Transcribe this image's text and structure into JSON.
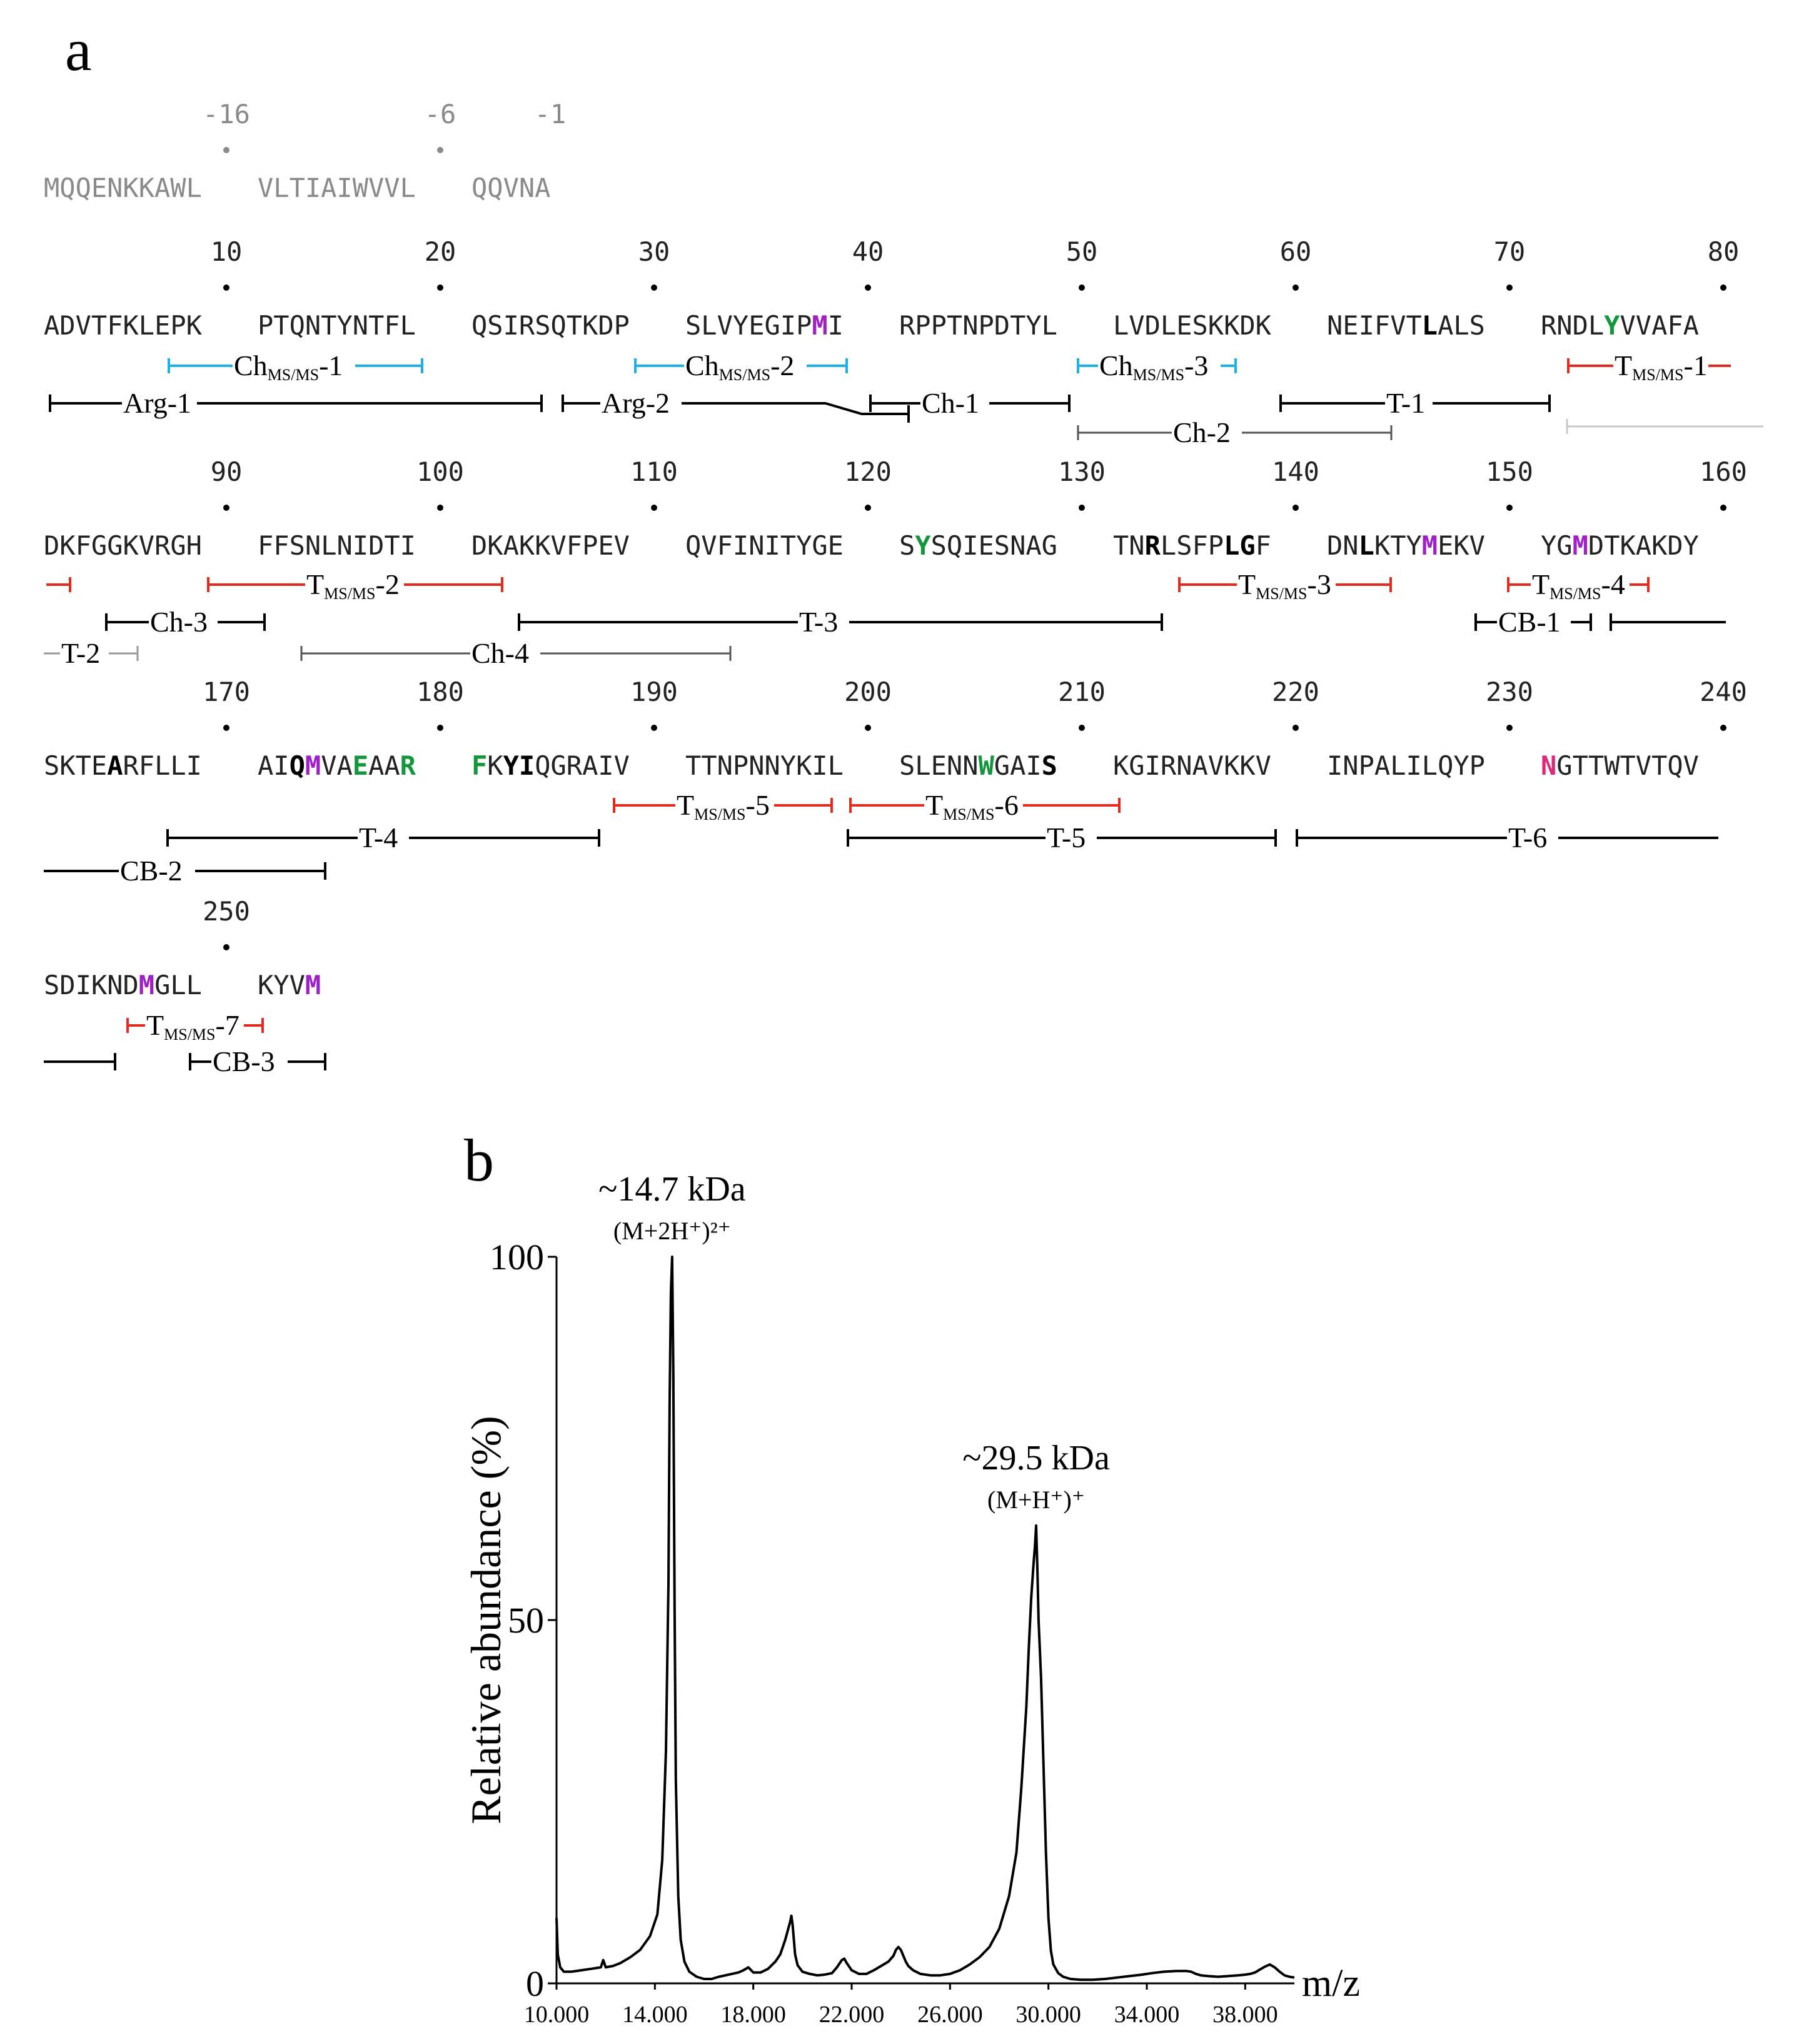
{
  "panel_a_label": "a",
  "panel_b_label": "b",
  "signal_peptide": {
    "numbers": [
      "-16",
      "-6",
      "-1"
    ],
    "blocks": [
      "MQQENKKAWL",
      "VLTIAIWVVL",
      "QQVNA"
    ]
  },
  "sequence_rows": [
    {
      "numbers": [
        "10",
        "20",
        "30",
        "40",
        "50",
        "60",
        "70",
        "80"
      ],
      "blocks": [
        "ADVTFKLEPK",
        "PTQNTYNTFL",
        "QSIRSQTKDP",
        "SLVYEGIPMI",
        "RPPTNPDTYL",
        "LVDLESKKDK",
        "NEIFVTLALS",
        "RNDLYVVAFA"
      ]
    },
    {
      "numbers": [
        "90",
        "100",
        "110",
        "120",
        "130",
        "140",
        "150",
        "160"
      ],
      "blocks": [
        "DKFGGKVRGH",
        "FFSNLNIDTI",
        "DKAKKVFPEV",
        "QVFINITYGE",
        "SYSQIESNAG",
        "TNRLSFPLGF",
        "DNLKTYMEKV",
        "YGMDTKAKDY"
      ]
    },
    {
      "numbers": [
        "170",
        "180",
        "190",
        "200",
        "210",
        "220",
        "230",
        "240"
      ],
      "blocks": [
        "SKTEARFLLI",
        "AIQMVAEAAR",
        "FKYIQGRAIV",
        "TTNPNNYKIL",
        "SLENNWGAIS",
        "KGIRNAVKKV",
        "INPALILQYP",
        "NGTTWTVTQV"
      ]
    },
    {
      "numbers": [
        "250"
      ],
      "blocks": [
        "SDIKNDMGLL",
        "KYVM"
      ]
    }
  ],
  "peptide_labels": {
    "ch_msms": [
      "Ch",
      "MS/MS",
      "-1",
      "-2",
      "-3"
    ],
    "t_msms": [
      "T",
      "MS/MS",
      "-1",
      "-2",
      "-3",
      "-4",
      "-5",
      "-6",
      "-7"
    ],
    "arg": [
      "Arg-1",
      "Arg-2"
    ],
    "ch": [
      "Ch-1",
      "Ch-2",
      "Ch-3",
      "Ch-4"
    ],
    "t": [
      "T-1",
      "T-2",
      "T-3",
      "T-4",
      "T-5",
      "T-6"
    ],
    "cb": [
      "CB-1",
      "CB-2",
      "CB-3"
    ]
  },
  "colors": {
    "cyan": "#1fb0e6",
    "red": "#e52b20",
    "black": "#000000",
    "gray": "#8a8a8a",
    "magenta": "#a020c8",
    "green": "#14963c",
    "pink": "#e0287a"
  },
  "chart_data": {
    "type": "line",
    "title": "",
    "xlabel": "m/z",
    "ylabel": "Relative abundance (%)",
    "xlim": [
      10000,
      40000
    ],
    "ylim": [
      0,
      100
    ],
    "x_ticks": [
      "10.000",
      "14.000",
      "18.000",
      "22.000",
      "26.000",
      "30.000",
      "34.000",
      "38.000"
    ],
    "x_tick_values": [
      10000,
      14000,
      18000,
      22000,
      26000,
      30000,
      34000,
      38000
    ],
    "y_ticks": [
      "0",
      "50",
      "100"
    ],
    "y_tick_values": [
      0,
      50,
      100
    ],
    "peaks": [
      {
        "label": "~14.7 kDa",
        "ion": "(M+2H⁺)²⁺",
        "x": 14700,
        "y": 100
      },
      {
        "label": "~29.5 kDa",
        "ion": "(M+H⁺)⁺",
        "x": 29500,
        "y": 63
      }
    ],
    "series": [
      {
        "name": "spectrum",
        "x": [
          10000,
          10050,
          10150,
          10300,
          10600,
          11000,
          11400,
          11800,
          11900,
          12000,
          12300,
          12600,
          13000,
          13400,
          13800,
          14100,
          14300,
          14450,
          14550,
          14600,
          14650,
          14700,
          14750,
          14800,
          14850,
          14950,
          15050,
          15200,
          15400,
          15700,
          16000,
          16300,
          16600,
          17000,
          17400,
          17600,
          17800,
          18000,
          18300,
          18600,
          18900,
          19100,
          19300,
          19500,
          19550,
          19600,
          19650,
          19700,
          19800,
          20000,
          20300,
          20600,
          20900,
          21200,
          21400,
          21600,
          21700,
          21800,
          22000,
          22300,
          22600,
          22900,
          23200,
          23500,
          23700,
          23800,
          23900,
          24000,
          24100,
          24200,
          24300,
          24500,
          24800,
          25200,
          25600,
          26000,
          26400,
          26800,
          27200,
          27600,
          28000,
          28400,
          28700,
          28900,
          29100,
          29200,
          29300,
          29400,
          29450,
          29500,
          29550,
          29600,
          29700,
          29800,
          29900,
          30000,
          30100,
          30200,
          30400,
          30600,
          30900,
          31300,
          31800,
          32300,
          32800,
          33300,
          33800,
          34200,
          34700,
          35200,
          35600,
          35800,
          36000,
          36200,
          36500,
          36900,
          37300,
          37700,
          38000,
          38200,
          38400,
          38600,
          38800,
          39000,
          39200,
          39400,
          39600,
          39800,
          40000
        ],
        "values": [
          9,
          4,
          2.2,
          1.6,
          1.6,
          1.8,
          2,
          2.2,
          3.2,
          2.2,
          2.4,
          2.8,
          3.6,
          4.6,
          6.5,
          9.5,
          17,
          32,
          55,
          80,
          95,
          100,
          84,
          52,
          28,
          12,
          6,
          3,
          1.6,
          0.9,
          0.6,
          0.6,
          0.9,
          1.2,
          1.5,
          1.8,
          2.2,
          1.5,
          1.5,
          2,
          3,
          4,
          6,
          8.5,
          9.3,
          8,
          6,
          4,
          2.5,
          1.6,
          1.3,
          1.1,
          1.2,
          1.4,
          2.2,
          3.2,
          3.4,
          2.8,
          1.8,
          1.3,
          1.3,
          1.8,
          2.4,
          3,
          3.8,
          4.6,
          5,
          4.6,
          3.8,
          3,
          2.4,
          1.8,
          1.3,
          1.1,
          1.1,
          1.3,
          1.8,
          2.6,
          3.6,
          5,
          7.5,
          12,
          18,
          27,
          38,
          46,
          53,
          58,
          60,
          63,
          57,
          50,
          42,
          30,
          18,
          9,
          4.5,
          2.6,
          1.4,
          0.9,
          0.6,
          0.5,
          0.5,
          0.6,
          0.8,
          1,
          1.2,
          1.4,
          1.6,
          1.7,
          1.7,
          1.6,
          1.3,
          1.1,
          1,
          0.9,
          1,
          1.1,
          1.2,
          1.3,
          1.5,
          1.9,
          2.3,
          2.6,
          2.2,
          1.6,
          1.1,
          0.9,
          0.8
        ]
      }
    ]
  }
}
